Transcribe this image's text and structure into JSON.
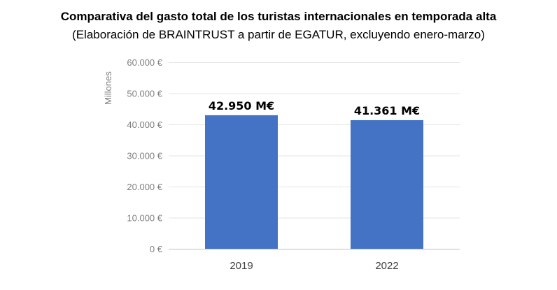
{
  "chart_data": {
    "type": "bar",
    "title": "Comparativa del gasto total de los turistas internacionales en temporada alta",
    "subtitle": "(Elaboración de BRAINTRUST a partir de EGATUR, excluyendo enero-marzo)",
    "ylabel": "Millones",
    "categories": [
      "2019",
      "2022"
    ],
    "values": [
      42950,
      41361
    ],
    "data_labels": [
      "42.950 M€",
      "41.361 M€"
    ],
    "ylim": [
      0,
      60000
    ],
    "yticks": [
      0,
      10000,
      20000,
      30000,
      40000,
      50000,
      60000
    ],
    "ytick_labels": [
      "0 €",
      "10.000 €",
      "20.000 €",
      "30.000 €",
      "40.000 €",
      "50.000 €",
      "60.000 €"
    ],
    "grid": true,
    "legend": "none",
    "colors": {
      "bar": "#4472c4",
      "grid": "#e6e6e6",
      "axis": "#bfbfbf",
      "tick_text": "#7f7f7f"
    }
  }
}
